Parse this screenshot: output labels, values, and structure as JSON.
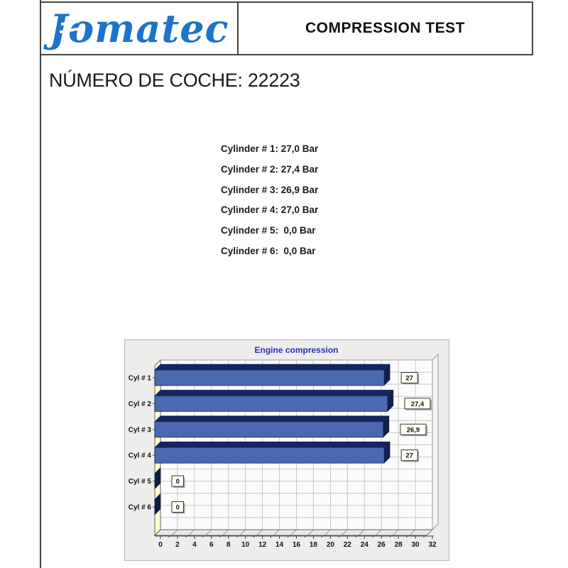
{
  "header": {
    "logo_text": "Jomatec",
    "logo_color": "#1b74c9",
    "title": "COMPRESSION TEST"
  },
  "car_number": {
    "text": "NÚMERO DE COCHE: 22223"
  },
  "readings": {
    "lines": [
      "Cylinder # 1: 27,0 Bar",
      "Cylinder # 2: 27,4 Bar",
      "Cylinder # 3: 26,9 Bar",
      "Cylinder # 4: 27,0 Bar",
      "Cylinder # 5:  0,0 Bar",
      "Cylinder # 6:  0,0 Bar"
    ]
  },
  "chart_data": {
    "type": "bar",
    "orientation": "horizontal",
    "title": "Engine compression",
    "categories": [
      "Cyl # 1",
      "Cyl # 2",
      "Cyl # 3",
      "Cyl # 4",
      "Cyl # 5",
      "Cyl # 6"
    ],
    "values": [
      27.0,
      27.4,
      26.9,
      27.0,
      0,
      0
    ],
    "value_labels": [
      "27",
      "27,4",
      "26,9",
      "27",
      "0",
      "0"
    ],
    "xlim": [
      0,
      32
    ],
    "x_ticks": [
      0,
      2,
      4,
      6,
      8,
      10,
      12,
      14,
      16,
      18,
      20,
      22,
      24,
      26,
      28,
      30,
      32
    ],
    "grid": true,
    "colors": {
      "title": "#2d2db5",
      "bar_front": "#4a69ae",
      "bar_top": "#13265e",
      "bar_end": "#0e2050",
      "zero_bar": "#0d1d45",
      "wall": "#ffffc8",
      "plot_bg": "#fcfcfc",
      "gridline": "#c6c6c6",
      "plot_border": "#9a9a9a",
      "floor": "#e8e8e8",
      "axis": "#444444",
      "label_box_bg": "#fffff2",
      "label_box_border": "#333333",
      "label_box_shadow": "#aaaaaa",
      "text": "#111111"
    }
  }
}
